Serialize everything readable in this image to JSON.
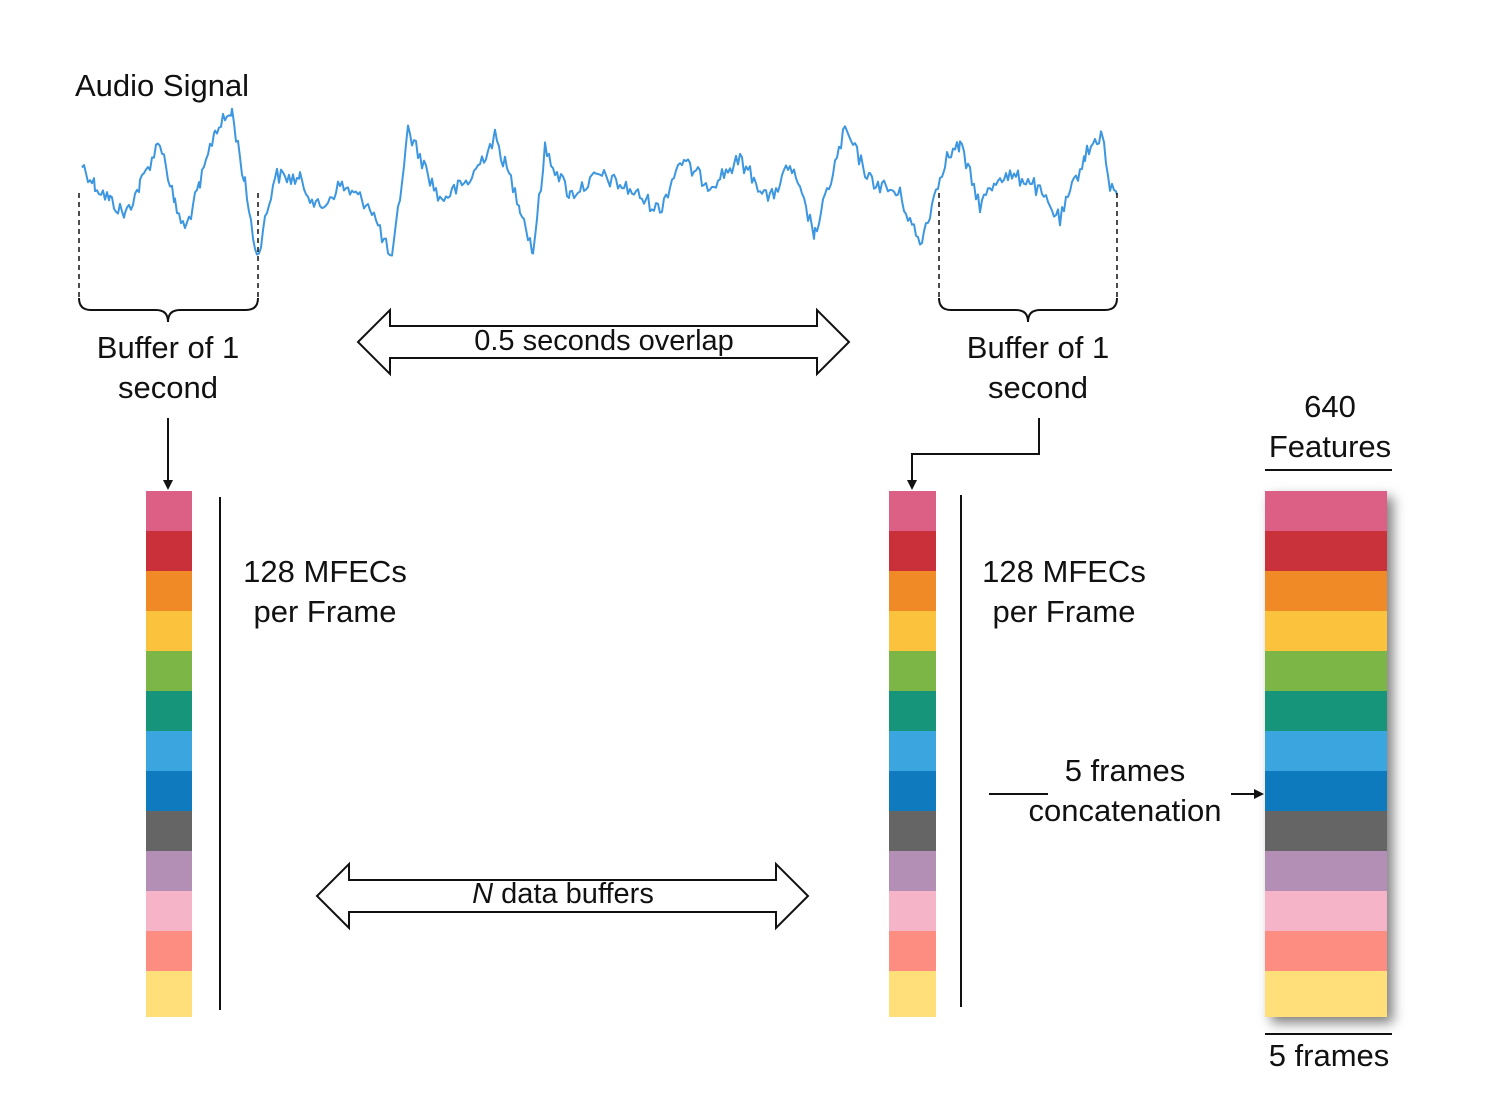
{
  "labels": {
    "audio_signal": "Audio Signal",
    "left_buffer_line1": "Buffer of 1",
    "left_buffer_line2": "second",
    "right_buffer_line1": "Buffer of 1",
    "right_buffer_line2": "second",
    "overlap": "0.5 seconds overlap",
    "n_buffers_italic": "N",
    "n_buffers_rest": " data buffers",
    "mfec_left_line1": "128 MFECs",
    "mfec_left_line2": "per Frame",
    "mfec_right_line1": "128 MFECs",
    "mfec_right_line2": "per Frame",
    "concat_line1": "5 frames",
    "concat_line2": "concatenation",
    "features_line1": "640",
    "features_line2": "Features",
    "frames_bottom": "5 frames"
  },
  "colors": {
    "waveform": "#3d97e0",
    "ink": "#111111",
    "palette": [
      "#dc6085",
      "#c9303a",
      "#ef8a26",
      "#fbc33d",
      "#7cb646",
      "#17957a",
      "#3aa5df",
      "#0f7abe",
      "#656565",
      "#b38fb6",
      "#f5b4c7",
      "#fd8d80",
      "#fedf7a"
    ]
  },
  "stack_frames": 5
}
